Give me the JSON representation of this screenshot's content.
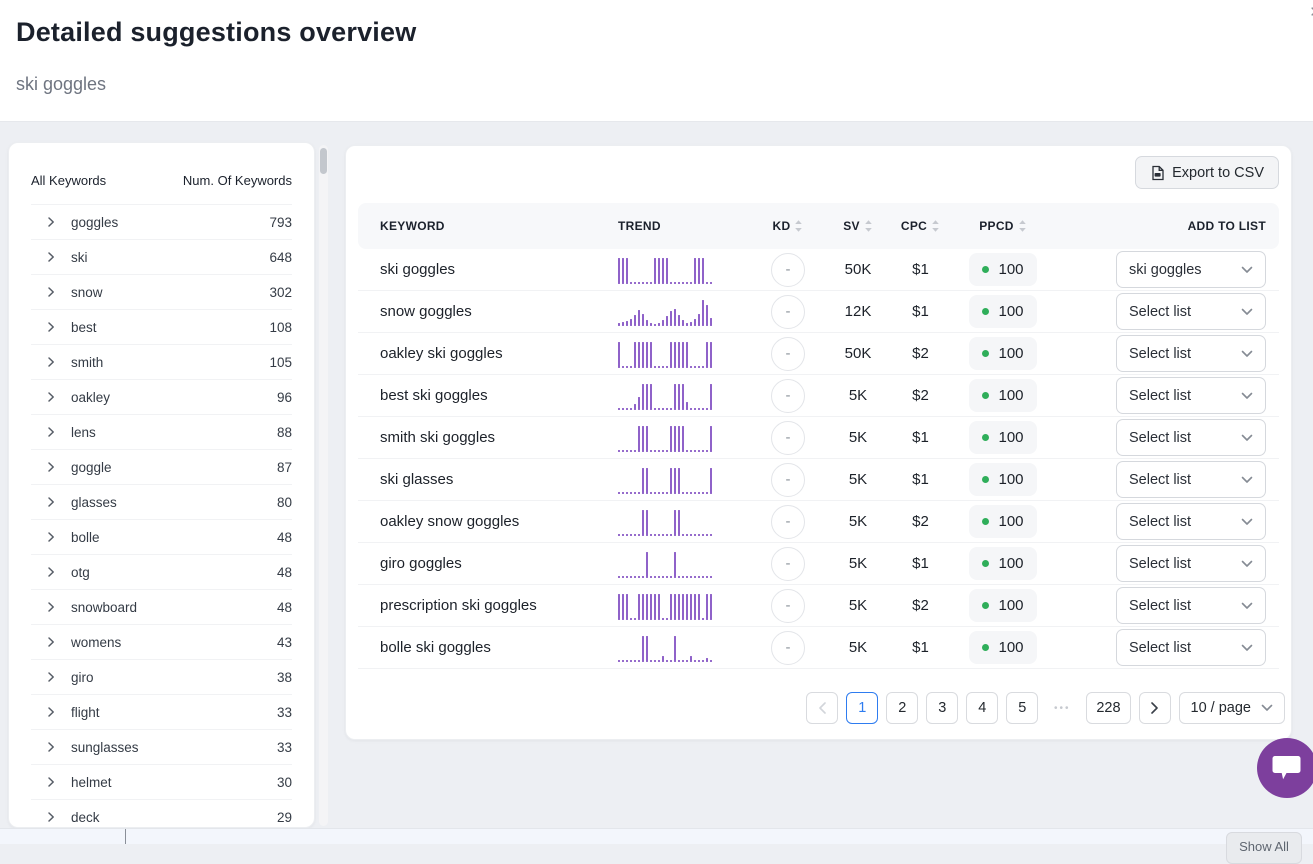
{
  "header": {
    "title": "Detailed suggestions overview",
    "subtitle": "ski goggles",
    "close_glyph": "×"
  },
  "sidebar": {
    "col_keyword": "All Keywords",
    "col_count": "Num. Of Keywords",
    "items": [
      {
        "label": "goggles",
        "count": "793"
      },
      {
        "label": "ski",
        "count": "648"
      },
      {
        "label": "snow",
        "count": "302"
      },
      {
        "label": "best",
        "count": "108"
      },
      {
        "label": "smith",
        "count": "105"
      },
      {
        "label": "oakley",
        "count": "96"
      },
      {
        "label": "lens",
        "count": "88"
      },
      {
        "label": "goggle",
        "count": "87"
      },
      {
        "label": "glasses",
        "count": "80"
      },
      {
        "label": "bolle",
        "count": "48"
      },
      {
        "label": "otg",
        "count": "48"
      },
      {
        "label": "snowboard",
        "count": "48"
      },
      {
        "label": "womens",
        "count": "43"
      },
      {
        "label": "giro",
        "count": "38"
      },
      {
        "label": "flight",
        "count": "33"
      },
      {
        "label": "sunglasses",
        "count": "33"
      },
      {
        "label": "helmet",
        "count": "30"
      },
      {
        "label": "deck",
        "count": "29"
      }
    ]
  },
  "table": {
    "export_label": "Export to CSV",
    "columns": [
      {
        "label": "KEYWORD",
        "sortable": false,
        "align": "first"
      },
      {
        "label": "TREND",
        "sortable": false,
        "align": "left"
      },
      {
        "label": "KD",
        "sortable": true,
        "align": "c"
      },
      {
        "label": "SV",
        "sortable": true,
        "align": "c"
      },
      {
        "label": "CPC",
        "sortable": true,
        "align": "c"
      },
      {
        "label": "PPCD",
        "sortable": true,
        "align": "c"
      },
      {
        "label": "",
        "sortable": false,
        "align": "left"
      },
      {
        "label": "ADD TO LIST",
        "sortable": false,
        "align": "r"
      }
    ],
    "rows": [
      {
        "keyword": "ski goggles",
        "kd": "-",
        "sv": "50K",
        "cpc": "$1",
        "ppcd": "100",
        "list": "ski goggles",
        "trend": [
          1,
          1,
          1,
          0.07,
          0.07,
          0.07,
          0.07,
          0.07,
          0.07,
          1,
          1,
          1,
          1,
          0.07,
          0.07,
          0.07,
          0.07,
          0.07,
          0.07,
          1,
          1,
          1,
          0.07,
          0.07
        ]
      },
      {
        "keyword": "snow goggles",
        "kd": "-",
        "sv": "12K",
        "cpc": "$1",
        "ppcd": "100",
        "list": "Select list",
        "trend": [
          0.1,
          0.12,
          0.18,
          0.25,
          0.4,
          0.6,
          0.45,
          0.2,
          0.1,
          0.07,
          0.1,
          0.2,
          0.35,
          0.55,
          0.65,
          0.4,
          0.2,
          0.1,
          0.12,
          0.25,
          0.45,
          1,
          0.8,
          0.3
        ]
      },
      {
        "keyword": "oakley ski goggles",
        "kd": "-",
        "sv": "50K",
        "cpc": "$2",
        "ppcd": "100",
        "list": "Select list",
        "trend": [
          1,
          0.07,
          0.07,
          0.07,
          1,
          1,
          1,
          1,
          1,
          0.07,
          0.07,
          0.07,
          0.07,
          1,
          1,
          1,
          1,
          1,
          0.07,
          0.07,
          0.07,
          0.07,
          1,
          1
        ]
      },
      {
        "keyword": "best ski goggles",
        "kd": "-",
        "sv": "5K",
        "cpc": "$2",
        "ppcd": "100",
        "list": "Select list",
        "trend": [
          0.07,
          0.07,
          0.07,
          0.07,
          0.2,
          0.5,
          1,
          1,
          1,
          0.07,
          0.07,
          0.07,
          0.07,
          0.07,
          1,
          1,
          1,
          0.3,
          0.07,
          0.07,
          0.07,
          0.07,
          0.07,
          1
        ]
      },
      {
        "keyword": "smith ski goggles",
        "kd": "-",
        "sv": "5K",
        "cpc": "$1",
        "ppcd": "100",
        "list": "Select list",
        "trend": [
          0.07,
          0.07,
          0.07,
          0.07,
          0.07,
          1,
          1,
          1,
          0.07,
          0.07,
          0.07,
          0.07,
          0.07,
          1,
          1,
          1,
          1,
          0.07,
          0.07,
          0.07,
          0.07,
          0.07,
          0.07,
          1
        ]
      },
      {
        "keyword": "ski glasses",
        "kd": "-",
        "sv": "5K",
        "cpc": "$1",
        "ppcd": "100",
        "list": "Select list",
        "trend": [
          0.07,
          0.07,
          0.07,
          0.07,
          0.07,
          0.07,
          1,
          1,
          0.07,
          0.07,
          0.07,
          0.07,
          0.07,
          1,
          1,
          1,
          0.07,
          0.07,
          0.07,
          0.07,
          0.07,
          0.07,
          0.07,
          1
        ]
      },
      {
        "keyword": "oakley snow goggles",
        "kd": "-",
        "sv": "5K",
        "cpc": "$2",
        "ppcd": "100",
        "list": "Select list",
        "trend": [
          0.07,
          0.07,
          0.07,
          0.07,
          0.07,
          0.07,
          1,
          1,
          0.07,
          0.07,
          0.07,
          0.07,
          0.07,
          0.07,
          1,
          1,
          0.07,
          0.07,
          0.07,
          0.07,
          0.07,
          0.07,
          0.07,
          0.07
        ]
      },
      {
        "keyword": "giro goggles",
        "kd": "-",
        "sv": "5K",
        "cpc": "$1",
        "ppcd": "100",
        "list": "Select list",
        "trend": [
          0.07,
          0.05,
          0,
          0.07,
          0.07,
          0.05,
          0.07,
          1,
          0.07,
          0,
          0.05,
          0.07,
          0.07,
          0.05,
          1,
          0.07,
          0.05,
          0,
          0.07,
          0.05,
          0,
          0.07,
          0.05,
          0.07
        ]
      },
      {
        "keyword": "prescription ski goggles",
        "kd": "-",
        "sv": "5K",
        "cpc": "$2",
        "ppcd": "100",
        "list": "Select list",
        "trend": [
          1,
          1,
          1,
          0.07,
          0.07,
          1,
          1,
          1,
          1,
          1,
          1,
          0.07,
          0.07,
          1,
          1,
          1,
          1,
          1,
          1,
          1,
          1,
          0.07,
          1,
          1
        ]
      },
      {
        "keyword": "bolle ski goggles",
        "kd": "-",
        "sv": "5K",
        "cpc": "$1",
        "ppcd": "100",
        "list": "Select list",
        "trend": [
          0.07,
          0.07,
          0.07,
          0.07,
          0.07,
          0.07,
          1,
          1,
          0.07,
          0.07,
          0.07,
          0.2,
          0.07,
          0.07,
          1,
          0.07,
          0.07,
          0.07,
          0.2,
          0.07,
          0,
          0.07,
          0.15,
          0.07
        ]
      }
    ]
  },
  "pagination": {
    "pages": [
      "1",
      "2",
      "3",
      "4",
      "5"
    ],
    "active_page": "1",
    "ellipsis": "•••",
    "last_page": "228",
    "page_size_label": "10 / page"
  },
  "footer": {
    "show_all_label": "Show All"
  },
  "colors": {
    "trend_purple": "#8f62c9",
    "ppcd_green": "#2fae5a",
    "active_page_blue": "#2e7cf0",
    "chat_bubble_purple": "#7d3f9d"
  }
}
